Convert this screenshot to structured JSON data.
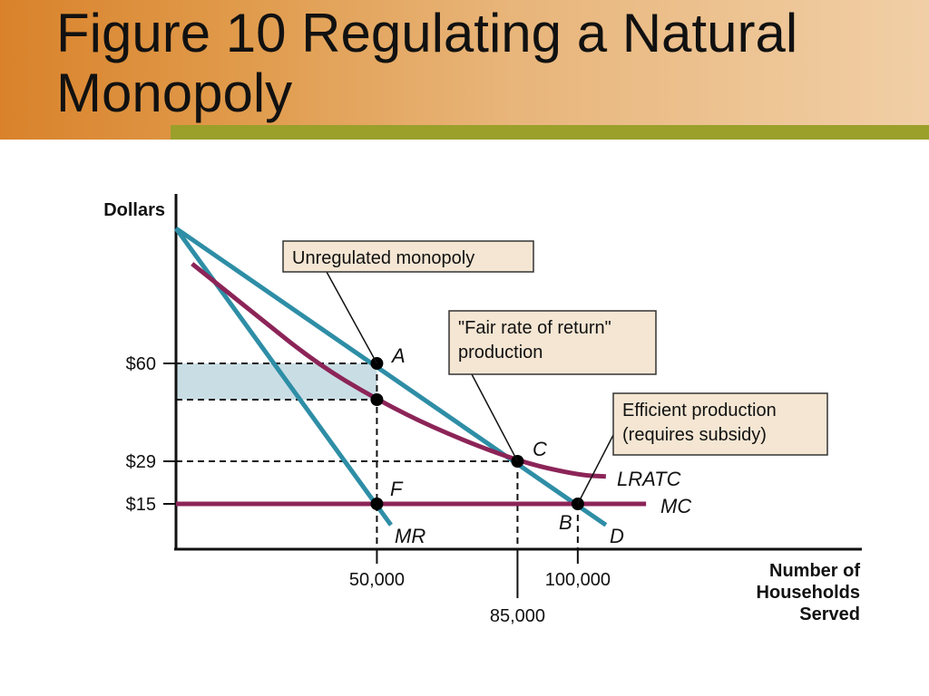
{
  "slide": {
    "title": "Figure 10 Regulating a Natural Monopoly"
  },
  "chart_data": {
    "type": "line",
    "ylabel": "Dollars",
    "xlabel": "Number of Households Served",
    "xlabel_lines": [
      "Number of",
      "Households",
      "Served"
    ],
    "x_ticks": [
      {
        "value": 50000,
        "label": "50,000"
      },
      {
        "value": 85000,
        "label": "85,000"
      },
      {
        "value": 100000,
        "label": "100,000"
      }
    ],
    "y_ticks": [
      {
        "value": 60,
        "label": "$60"
      },
      {
        "value": 29,
        "label": "$29"
      },
      {
        "value": 15,
        "label": "$15"
      }
    ],
    "xlim": [
      0,
      170000
    ],
    "ylim": [
      0,
      100
    ],
    "series": [
      {
        "name": "D",
        "color": "#2e8ea6",
        "points": [
          [
            0,
            102
          ],
          [
            107000,
            8
          ]
        ]
      },
      {
        "name": "MR",
        "color": "#2e8ea6",
        "points": [
          [
            0,
            102
          ],
          [
            53500,
            8
          ]
        ]
      },
      {
        "name": "LRATC",
        "color": "#8c2458",
        "points": [
          [
            4000,
            91
          ],
          [
            20000,
            75
          ],
          [
            35000,
            60
          ],
          [
            50000,
            48.5
          ],
          [
            65000,
            39
          ],
          [
            85000,
            29
          ],
          [
            100000,
            24.5
          ],
          [
            107000,
            24
          ]
        ]
      },
      {
        "name": "MC",
        "color": "#8c2458",
        "points": [
          [
            0,
            15
          ],
          [
            117000,
            15
          ]
        ]
      }
    ],
    "points": [
      {
        "label": "A",
        "x": 50000,
        "y": 60
      },
      {
        "label": "",
        "x": 50000,
        "y": 48.5
      },
      {
        "label": "C",
        "x": 85000,
        "y": 29
      },
      {
        "label": "F",
        "x": 50000,
        "y": 15
      },
      {
        "label": "B",
        "x": 100000,
        "y": 15
      }
    ],
    "shaded_region": {
      "x": [
        0,
        50000
      ],
      "y": [
        48.5,
        60
      ],
      "color": "#c9dde4"
    },
    "annotations": [
      {
        "text": [
          "Unregulated monopoly"
        ],
        "target": "A"
      },
      {
        "text": [
          "\"Fair rate of return\"",
          "production"
        ],
        "target": "C"
      },
      {
        "text": [
          "Efficient production",
          "(requires subsidy)"
        ],
        "target": "B"
      }
    ]
  }
}
